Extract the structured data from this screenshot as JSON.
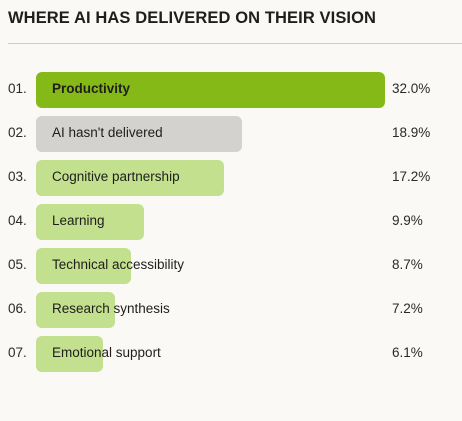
{
  "title": "WHERE AI HAS DELIVERED ON THEIR VISION",
  "colors": {
    "highlight": "#84b917",
    "neutral": "#d3d2cf",
    "default": "#c2e08d",
    "background": "#faf9f5"
  },
  "chart_data": {
    "type": "bar",
    "orientation": "horizontal",
    "title": "WHERE AI HAS DELIVERED ON THEIR VISION",
    "xlim": [
      0,
      32
    ],
    "rows": [
      {
        "rank": "01.",
        "category": "Productivity",
        "value": 32.0,
        "value_label": "32.0%",
        "style": "highlight"
      },
      {
        "rank": "02.",
        "category": "AI hasn't delivered",
        "value": 18.9,
        "value_label": "18.9%",
        "style": "neutral"
      },
      {
        "rank": "03.",
        "category": "Cognitive partnership",
        "value": 17.2,
        "value_label": "17.2%",
        "style": "default"
      },
      {
        "rank": "04.",
        "category": "Learning",
        "value": 9.9,
        "value_label": "9.9%",
        "style": "default"
      },
      {
        "rank": "05.",
        "category": "Technical accessibility",
        "value": 8.7,
        "value_label": "8.7%",
        "style": "default"
      },
      {
        "rank": "06.",
        "category": "Research synthesis",
        "value": 7.2,
        "value_label": "7.2%",
        "style": "default"
      },
      {
        "rank": "07.",
        "category": "Emotional support",
        "value": 6.1,
        "value_label": "6.1%",
        "style": "default"
      }
    ]
  }
}
